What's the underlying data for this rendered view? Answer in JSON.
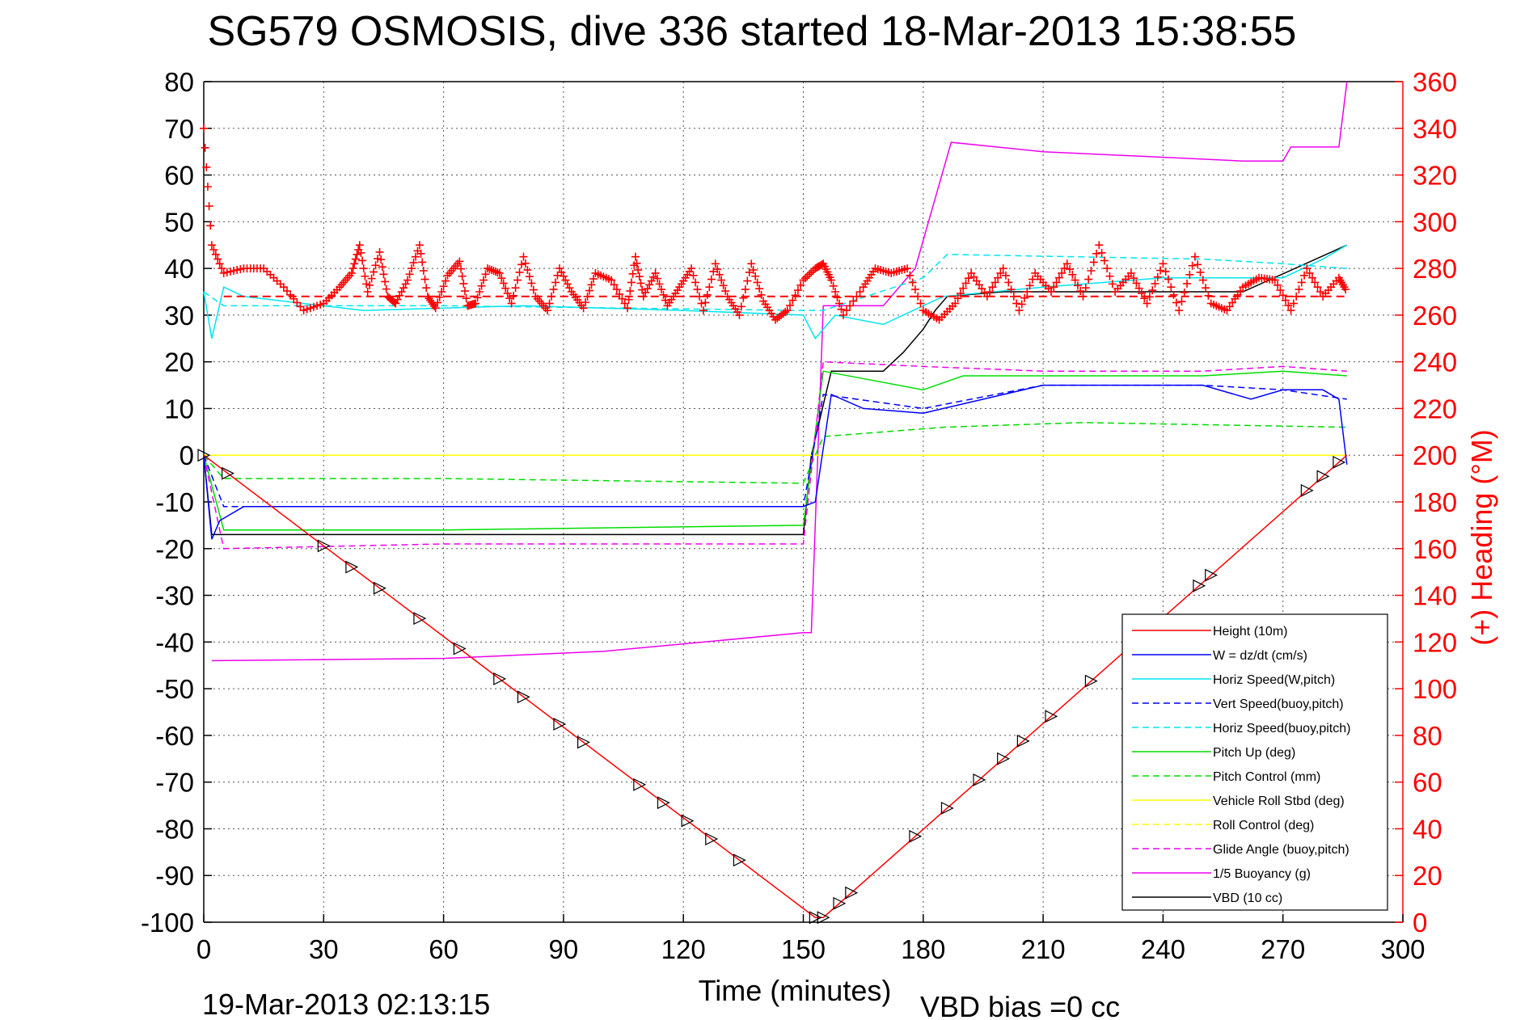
{
  "chart_data": {
    "type": "line",
    "title": "SG579 OSMOSIS, dive 336 started 18-Mar-2013 15:38:55",
    "xlabel": "Time (minutes)",
    "ylabel_right": "(+) Heading (°M)",
    "footer_left": "19-Mar-2013 02:13:15",
    "footer_right": "VBD bias =0 cc",
    "xlim": [
      0,
      300
    ],
    "ylim_left": [
      -100,
      80
    ],
    "ylim_right": [
      0,
      360
    ],
    "grid": true,
    "legend_position": "bottom-right",
    "x_ticks": [
      "0",
      "30",
      "60",
      "90",
      "120",
      "150",
      "180",
      "210",
      "240",
      "270",
      "300"
    ],
    "y_ticks_left": [
      "80",
      "70",
      "60",
      "50",
      "40",
      "30",
      "20",
      "10",
      "0",
      "-10",
      "-20",
      "-30",
      "-40",
      "-50",
      "-60",
      "-70",
      "-80",
      "-90",
      "-100"
    ],
    "y_ticks_right": [
      "360",
      "340",
      "320",
      "300",
      "280",
      "260",
      "240",
      "220",
      "200",
      "180",
      "160",
      "140",
      "120",
      "100",
      "80",
      "60",
      "40",
      "20",
      "0"
    ],
    "series": [
      {
        "name": "Height (10m)",
        "color": "#ff0000",
        "style": "solid",
        "x": [
          0,
          153,
          155,
          286
        ],
        "y": [
          0,
          -99,
          -99,
          0
        ]
      },
      {
        "name": "W = dz/dt (cm/s)",
        "color": "#0000ff",
        "style": "solid",
        "x": [
          0,
          2,
          4,
          10,
          30,
          60,
          100,
          150,
          153,
          157,
          165,
          180,
          210,
          250,
          262,
          270,
          280,
          284,
          286
        ],
        "y": [
          0,
          -18,
          -14,
          -11,
          -11,
          -11,
          -11,
          -11,
          -10,
          13,
          10,
          9,
          15,
          15,
          12,
          14,
          14,
          12,
          -2
        ]
      },
      {
        "name": "Horiz Speed(W,pitch)",
        "color": "#00e5ee",
        "style": "solid",
        "x": [
          0,
          2,
          5,
          10,
          40,
          80,
          120,
          150,
          153,
          158,
          170,
          185,
          210,
          240,
          270,
          280,
          286
        ],
        "y": [
          35,
          25,
          36,
          34,
          31,
          32,
          31,
          30,
          25,
          30,
          28,
          34,
          36,
          38,
          38,
          42,
          45
        ]
      },
      {
        "name": "Vert Speed(buoy,pitch)",
        "color": "#0000ff",
        "style": "dashed",
        "x": [
          0,
          5,
          60,
          150,
          155,
          180,
          210,
          250,
          270,
          286
        ],
        "y": [
          0,
          -11,
          -11,
          -11,
          13,
          10,
          15,
          15,
          14,
          12
        ]
      },
      {
        "name": "Horiz Speed(buoy,pitch)",
        "color": "#00e5ee",
        "style": "dashed",
        "x": [
          0,
          5,
          60,
          150,
          155,
          180,
          186,
          250,
          270,
          286
        ],
        "y": [
          35,
          32,
          32,
          31,
          31,
          38,
          43,
          42,
          41,
          40
        ]
      },
      {
        "name": "Pitch Up (deg)",
        "color": "#00dd00",
        "style": "solid",
        "x": [
          0,
          5,
          60,
          150,
          155,
          180,
          190,
          250,
          270,
          286
        ],
        "y": [
          0,
          -16,
          -16,
          -15,
          18,
          14,
          17,
          17,
          18,
          17
        ]
      },
      {
        "name": "Pitch Control (mm)",
        "color": "#00dd00",
        "style": "dashed",
        "x": [
          0,
          5,
          60,
          150,
          155,
          185,
          220,
          286
        ],
        "y": [
          0,
          -5,
          -5,
          -6,
          4,
          6,
          7,
          6
        ]
      },
      {
        "name": "Vehicle Roll Stbd (deg)",
        "color": "#ffff00",
        "style": "solid",
        "x": [
          0,
          5,
          60,
          150,
          155,
          180,
          210,
          250,
          286
        ],
        "y": [
          0,
          0,
          0,
          0,
          0,
          0,
          0,
          0,
          0
        ]
      },
      {
        "name": "Roll Control (deg)",
        "color": "#ffff00",
        "style": "dashed",
        "x": [
          0,
          286
        ],
        "y": [
          0,
          0
        ]
      },
      {
        "name": "Glide Angle (buoy,pitch)",
        "color": "#ee00ee",
        "style": "dashed",
        "x": [
          0,
          5,
          60,
          150,
          155,
          180,
          210,
          250,
          270,
          286
        ],
        "y": [
          0,
          -20,
          -19,
          -19,
          20,
          19,
          18,
          18,
          19,
          18
        ]
      },
      {
        "name": "1/5 Buoyancy (g)",
        "color": "#ee00ee",
        "style": "solid",
        "x": [
          2,
          3,
          60,
          100,
          150,
          152,
          155,
          170,
          178,
          183,
          187,
          210,
          260,
          270,
          272,
          284,
          286
        ],
        "y": [
          -44,
          -44,
          -43.5,
          -42,
          -38,
          -38,
          32,
          32,
          40,
          55,
          67,
          65,
          63,
          63,
          66,
          66,
          80
        ]
      },
      {
        "name": "VBD (10 cc)",
        "color": "#000000",
        "style": "solid",
        "x": [
          0,
          2,
          5,
          60,
          150,
          152,
          157,
          170,
          175,
          180,
          183,
          186,
          200,
          260,
          286
        ],
        "y": [
          0,
          -17,
          -17,
          -17,
          -17,
          0,
          18,
          18,
          22,
          27,
          31,
          34,
          35,
          35,
          45
        ]
      }
    ],
    "heading": {
      "name": "Heading",
      "color": "#ff0000",
      "marker": "+",
      "mean_deg": 268,
      "x": [
        0,
        2,
        5,
        10,
        15,
        20,
        25,
        30,
        34,
        37,
        39,
        41,
        44,
        46,
        48,
        51,
        54,
        56,
        58,
        61,
        64,
        66,
        68,
        71,
        74,
        77,
        80,
        83,
        86,
        89,
        92,
        95,
        98,
        102,
        106,
        108,
        110,
        113,
        116,
        119,
        122,
        125,
        128,
        131,
        134,
        137,
        140,
        143,
        146,
        150,
        153,
        155,
        157,
        160,
        165,
        168,
        172,
        176,
        180,
        184,
        188,
        192,
        196,
        200,
        204,
        208,
        212,
        216,
        220,
        224,
        228,
        232,
        236,
        240,
        244,
        248,
        252,
        256,
        260,
        264,
        268,
        272,
        276,
        280,
        284,
        286
      ],
      "y": [
        340,
        290,
        278,
        280,
        280,
        272,
        262,
        265,
        272,
        278,
        290,
        270,
        287,
        268,
        265,
        275,
        290,
        268,
        263,
        277,
        283,
        264,
        265,
        280,
        278,
        265,
        285,
        268,
        262,
        280,
        270,
        263,
        278,
        275,
        263,
        285,
        268,
        278,
        264,
        272,
        280,
        262,
        282,
        268,
        260,
        282,
        266,
        258,
        262,
        275,
        280,
        282,
        275,
        260,
        272,
        280,
        278,
        280,
        262,
        258,
        265,
        278,
        268,
        280,
        262,
        278,
        270,
        282,
        268,
        290,
        270,
        278,
        265,
        282,
        262,
        285,
        265,
        262,
        272,
        276,
        275,
        262,
        280,
        268,
        276,
        270
      ]
    }
  }
}
